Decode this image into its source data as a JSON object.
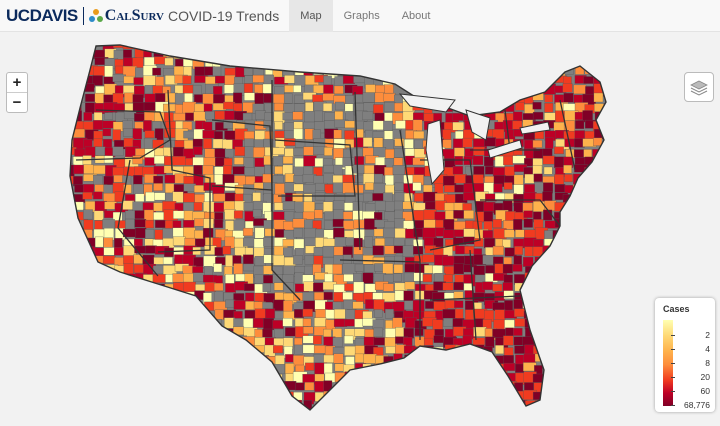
{
  "brand": {
    "ucdavis_part1": "UC",
    "ucdavis_part2": "DAVIS",
    "calsurv": "CalSurv",
    "app_title": "COVID-19 Trends"
  },
  "nav": {
    "items": [
      {
        "label": "Map",
        "active": true
      },
      {
        "label": "Graphs",
        "active": false
      },
      {
        "label": "About",
        "active": false
      }
    ]
  },
  "map_controls": {
    "zoom_in": "+",
    "zoom_out": "−",
    "layers_icon": "layers-icon"
  },
  "legend": {
    "title": "Cases",
    "labels": [
      "2",
      "4",
      "8",
      "20",
      "60",
      "68,776"
    ]
  },
  "colors": {
    "no_data": "#7f7f7f",
    "scale": [
      "#ffffb2",
      "#fed976",
      "#feb24c",
      "#fd8d3c",
      "#f03b20",
      "#bd0026",
      "#800026"
    ]
  }
}
